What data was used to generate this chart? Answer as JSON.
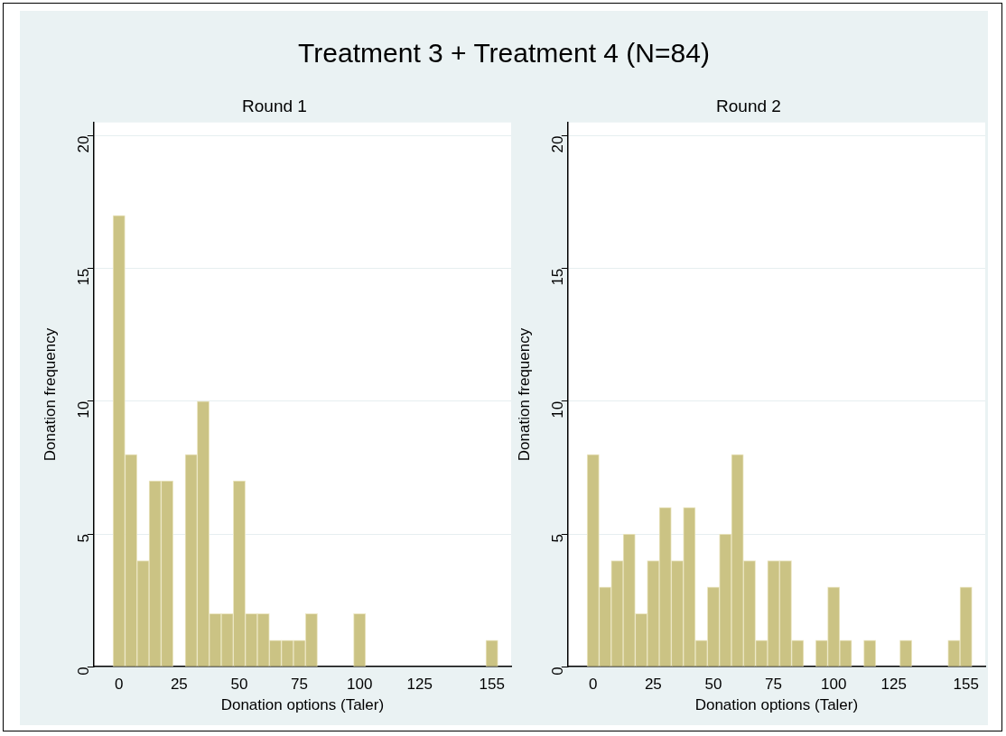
{
  "chart_data": [
    {
      "type": "histogram",
      "title": "Treatment 3 + Treatment 4 (N=84)",
      "subtitle": "Round 1",
      "xlabel": "Donation options (Taler)",
      "ylabel": "Donation frequency",
      "color": "#cbc384",
      "bins": [
        -2.5,
        2.5,
        7.5,
        12.5,
        17.5,
        22.5,
        27.5,
        32.5,
        37.5,
        42.5,
        47.5,
        52.5,
        57.5,
        62.5,
        67.5,
        72.5,
        77.5,
        82.5,
        87.5,
        92.5,
        97.5,
        102.5,
        107.5,
        112.5,
        117.5,
        122.5,
        127.5,
        132.5,
        137.5,
        142.5,
        147.5,
        152.5,
        157.5
      ],
      "values": [
        17,
        8,
        4,
        7,
        7,
        0,
        8,
        10,
        2,
        2,
        7,
        2,
        2,
        1,
        1,
        1,
        2,
        0,
        0,
        0,
        2,
        0,
        0,
        0,
        0,
        0,
        0,
        0,
        0,
        0,
        0,
        1
      ],
      "xlim": [
        -10.5,
        163
      ],
      "xticks": [
        0,
        25,
        50,
        75,
        100,
        125,
        155
      ],
      "ylim": [
        0,
        20.5
      ],
      "yticks": [
        0,
        5,
        10,
        15,
        20
      ],
      "grid": "y",
      "legend": false
    },
    {
      "type": "histogram",
      "subtitle": "Round 2",
      "xlabel": "Donation options (Taler)",
      "ylabel": "Donation frequency",
      "color": "#cbc384",
      "bins": [
        -2.5,
        2.5,
        7.5,
        12.5,
        17.5,
        22.5,
        27.5,
        32.5,
        37.5,
        42.5,
        47.5,
        52.5,
        57.5,
        62.5,
        67.5,
        72.5,
        77.5,
        82.5,
        87.5,
        92.5,
        97.5,
        102.5,
        107.5,
        112.5,
        117.5,
        122.5,
        127.5,
        132.5,
        137.5,
        142.5,
        147.5,
        152.5,
        157.5
      ],
      "values": [
        8,
        3,
        4,
        5,
        2,
        4,
        6,
        4,
        6,
        1,
        3,
        5,
        8,
        4,
        1,
        4,
        4,
        1,
        0,
        1,
        3,
        1,
        0,
        1,
        0,
        0,
        1,
        0,
        0,
        0,
        1,
        3
      ],
      "xlim": [
        -10.5,
        163
      ],
      "xticks": [
        0,
        25,
        50,
        75,
        100,
        125,
        155
      ],
      "ylim": [
        0,
        20.5
      ],
      "yticks": [
        0,
        5,
        10,
        15,
        20
      ],
      "grid": "y",
      "legend": false
    }
  ]
}
